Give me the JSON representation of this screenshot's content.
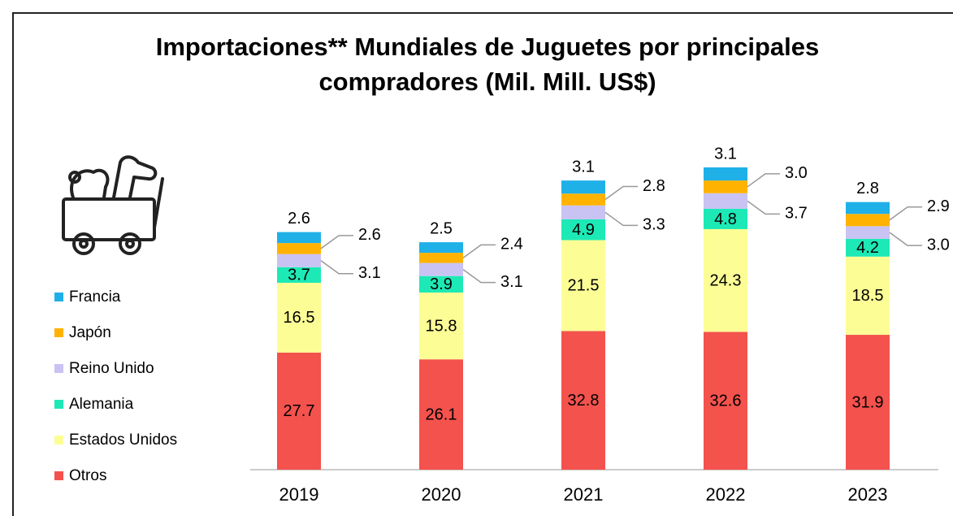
{
  "chart_data": {
    "type": "stacked-bar",
    "title": "Importaciones** Mundiales de Juguetes por principales",
    "subtitle": "compradores (Mil. Mill. US$)",
    "categories": [
      "2019",
      "2020",
      "2021",
      "2022",
      "2023"
    ],
    "series": [
      {
        "name": "Otros",
        "color": "#f4524d",
        "values": [
          27.7,
          26.1,
          32.8,
          32.6,
          31.9
        ]
      },
      {
        "name": "Estados Unidos",
        "color": "#fdfd96",
        "values": [
          16.5,
          15.8,
          21.5,
          24.3,
          18.5
        ]
      },
      {
        "name": "Alemania",
        "color": "#1de9b6",
        "values": [
          3.7,
          3.9,
          4.9,
          4.8,
          4.2
        ]
      },
      {
        "name": "Reino Unido",
        "color": "#c9c3f3",
        "values": [
          3.1,
          3.1,
          3.3,
          3.7,
          3.0
        ],
        "value_labels": [
          "3.1",
          "3.1",
          "3.3",
          "3.7",
          "3.0"
        ]
      },
      {
        "name": "Japón",
        "color": "#ffb300",
        "values": [
          2.6,
          2.4,
          2.8,
          3.0,
          2.9
        ],
        "value_labels": [
          "2.6",
          "2.4",
          "2.8",
          "3.0",
          "2.9"
        ]
      },
      {
        "name": "Francia",
        "color": "#1fb0e8",
        "values": [
          2.6,
          2.5,
          3.1,
          3.1,
          2.8
        ]
      }
    ]
  }
}
